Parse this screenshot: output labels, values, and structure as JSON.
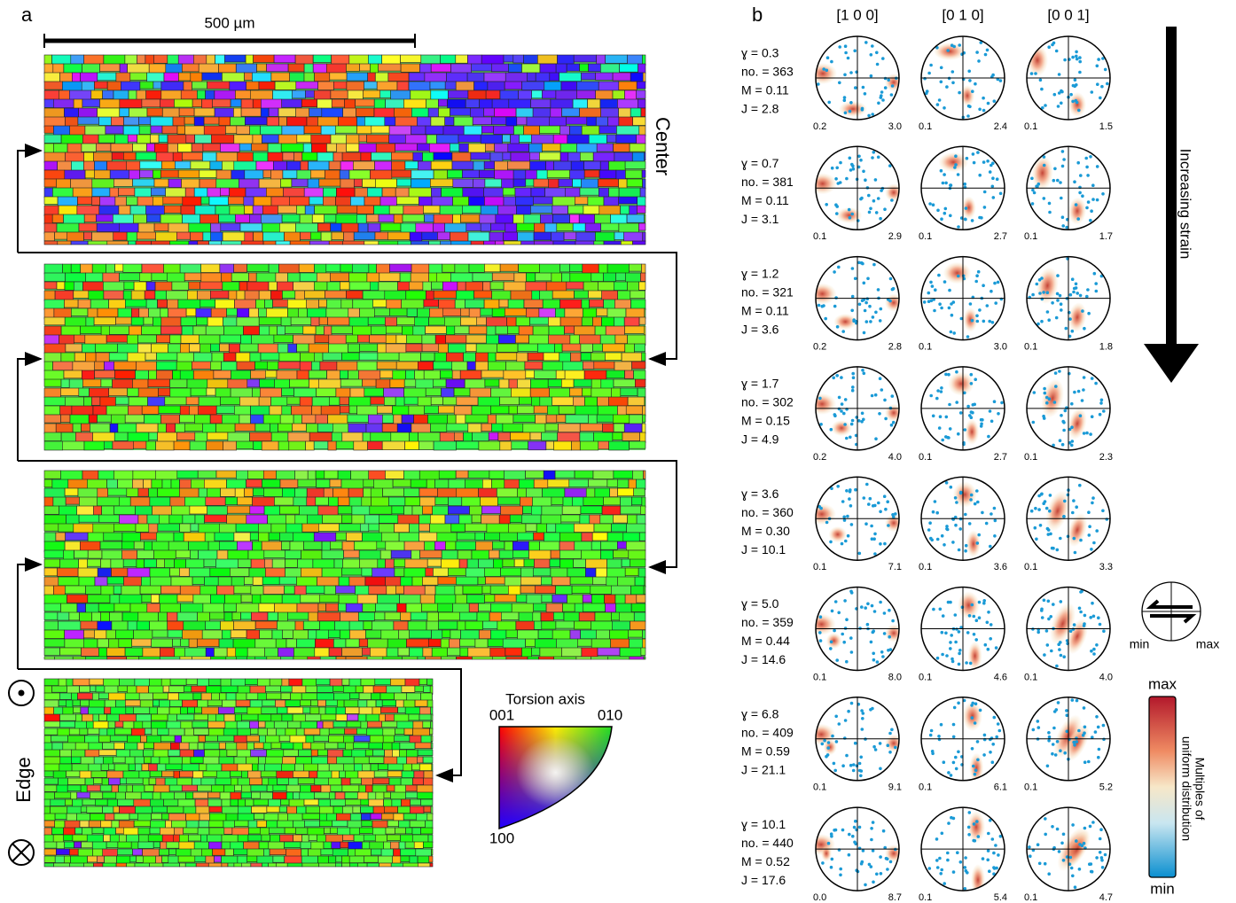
{
  "panel_a": {
    "label": "a",
    "scale_bar": "500 µm",
    "top_label": "Center",
    "bottom_label": "Edge",
    "legend": {
      "title": "Torsion axis",
      "corners": [
        "001",
        "010",
        "100"
      ]
    }
  },
  "panel_b": {
    "label": "b",
    "columns": [
      "[1 0 0]",
      "[0 1 0]",
      "[0 0 1]"
    ],
    "rows": [
      {
        "lines": [
          "ɣ = 0.3",
          "no. = 363",
          "M = 0.11",
          "J = 2.8"
        ],
        "ranges": [
          [
            "0.2",
            "3.0"
          ],
          [
            "0.1",
            "2.4"
          ],
          [
            "0.1",
            "1.5"
          ]
        ]
      },
      {
        "lines": [
          "ɣ = 0.7",
          "no. = 381",
          "M = 0.11",
          "J = 3.1"
        ],
        "ranges": [
          [
            "0.1",
            "2.9"
          ],
          [
            "0.1",
            "2.7"
          ],
          [
            "0.1",
            "1.7"
          ]
        ]
      },
      {
        "lines": [
          "ɣ = 1.2",
          "no. = 321",
          "M = 0.11",
          "J = 3.6"
        ],
        "ranges": [
          [
            "0.2",
            "2.8"
          ],
          [
            "0.1",
            "3.0"
          ],
          [
            "0.1",
            "1.8"
          ]
        ]
      },
      {
        "lines": [
          "ɣ = 1.7",
          "no. = 302",
          "M = 0.15",
          "J = 4.9"
        ],
        "ranges": [
          [
            "0.2",
            "4.0"
          ],
          [
            "0.1",
            "2.7"
          ],
          [
            "0.1",
            "2.3"
          ]
        ]
      },
      {
        "lines": [
          "ɣ = 3.6",
          "no. = 360",
          "M = 0.30",
          "J = 10.1"
        ],
        "ranges": [
          [
            "0.1",
            "7.1"
          ],
          [
            "0.1",
            "3.6"
          ],
          [
            "0.1",
            "3.3"
          ]
        ]
      },
      {
        "lines": [
          "ɣ = 5.0",
          "no. = 359",
          "M = 0.44",
          "J = 14.6"
        ],
        "ranges": [
          [
            "0.1",
            "8.0"
          ],
          [
            "0.1",
            "4.6"
          ],
          [
            "0.1",
            "4.0"
          ]
        ]
      },
      {
        "lines": [
          "ɣ = 6.8",
          "no. = 409",
          "M = 0.59",
          "J = 21.1"
        ],
        "ranges": [
          [
            "0.1",
            "9.1"
          ],
          [
            "0.1",
            "6.1"
          ],
          [
            "0.1",
            "5.2"
          ]
        ]
      },
      {
        "lines": [
          "ɣ = 10.1",
          "no. = 440",
          "M = 0.52",
          "J = 17.6"
        ],
        "ranges": [
          [
            "0.0",
            "8.7"
          ],
          [
            "0.1",
            "5.4"
          ],
          [
            "0.1",
            "4.7"
          ]
        ]
      }
    ],
    "strain_arrow": "Increasing strain",
    "shear_sense": [
      "min",
      "max"
    ],
    "colorbar": {
      "max": "max",
      "min": "min",
      "title": [
        "Multiples of",
        "uniform distribution"
      ]
    }
  }
}
